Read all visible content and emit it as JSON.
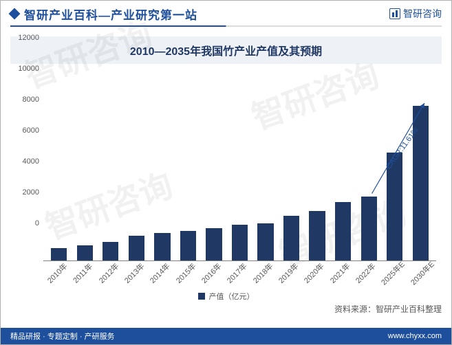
{
  "header": {
    "title": "智研产业百科—产业研究第一站",
    "brand": "智研咨询"
  },
  "chart": {
    "type": "bar",
    "title": "2010—2035年我国竹产业产值及其预期",
    "categories": [
      "2010年",
      "2011年",
      "2012年",
      "2013年",
      "2014年",
      "2015年",
      "2016年",
      "2017年",
      "2018年",
      "2019年",
      "2020年",
      "2021年",
      "2022年",
      "2025年E",
      "2030年E"
    ],
    "values": [
      800,
      1000,
      1200,
      1600,
      1800,
      1900,
      2100,
      2300,
      2400,
      2900,
      3200,
      3800,
      4150,
      7000,
      10000
    ],
    "bar_color": "#203864",
    "ylim": [
      0,
      12000
    ],
    "ytick_step": 2000,
    "yticks": [
      0,
      2000,
      4000,
      6000,
      8000,
      10000,
      12000
    ],
    "grid_color": "#d9d9d9",
    "background_color": "#ffffff",
    "title_fontsize": 16,
    "label_fontsize": 11,
    "bar_width": 0.62,
    "annotation": {
      "text": "CAGR:11.61%",
      "color": "#1e4f9c"
    },
    "legend_label": "产值（亿元）"
  },
  "source": {
    "label": "资料来源：",
    "value": "智研产业百科整理"
  },
  "footer": {
    "left": "精品研报 · 专题定制 · 产研服务",
    "right": "www.chyxx.com"
  },
  "watermark": "智研咨询"
}
